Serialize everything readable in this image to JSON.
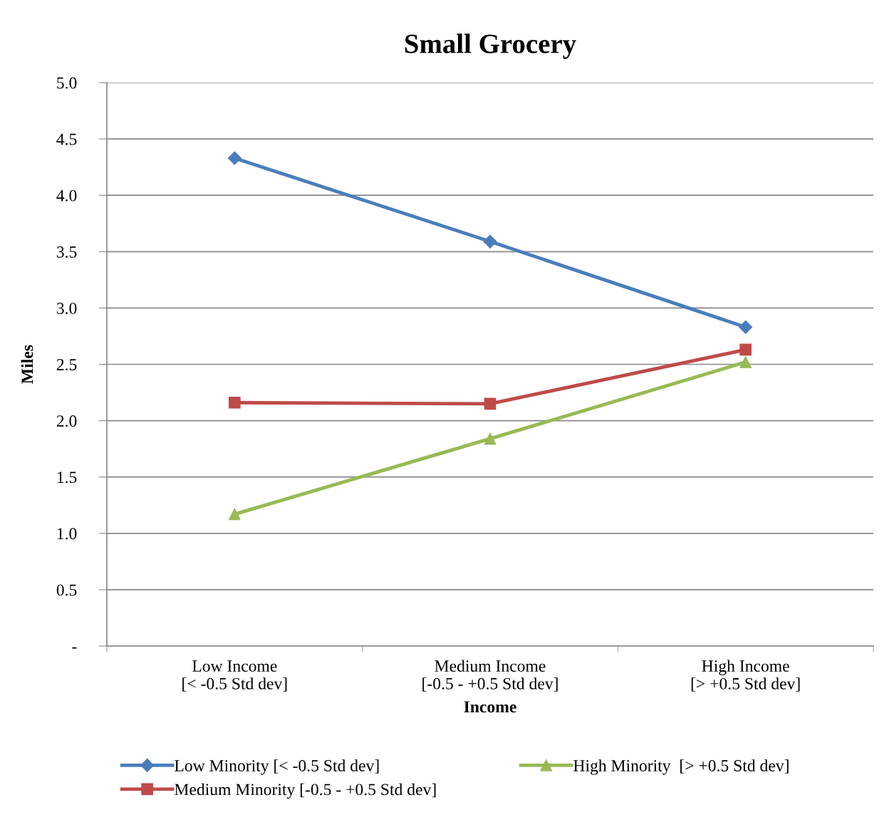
{
  "chart_data": {
    "type": "line",
    "title": "Small Grocery",
    "xlabel": "Income",
    "ylabel": "Miles",
    "categories": [
      "Low Income\n[< -0.5 Std dev]",
      "Medium Income\n[-0.5 - +0.5 Std dev]",
      "High Income\n[> +0.5 Std dev]"
    ],
    "series": [
      {
        "name": "Low Minority [< -0.5 Std dev]",
        "color": "#4a7ebb",
        "marker": "diamond",
        "values": [
          4.33,
          3.59,
          2.83
        ]
      },
      {
        "name": "Medium Minority [-0.5 - +0.5 Std dev]",
        "color": "#be4b48",
        "marker": "square",
        "values": [
          2.16,
          2.15,
          2.63
        ]
      },
      {
        "name": "High Minority  [> +0.5 Std dev]",
        "color": "#98b954",
        "marker": "triangle",
        "values": [
          1.17,
          1.84,
          2.52
        ]
      }
    ],
    "ylim": [
      0,
      5
    ],
    "yticks": [
      {
        "value": 0,
        "label": "-"
      },
      {
        "value": 0.5,
        "label": "0.5"
      },
      {
        "value": 1,
        "label": "1.0"
      },
      {
        "value": 1.5,
        "label": "1.5"
      },
      {
        "value": 2,
        "label": "2.0"
      },
      {
        "value": 2.5,
        "label": "2.5"
      },
      {
        "value": 3,
        "label": "3.0"
      },
      {
        "value": 3.5,
        "label": "3.5"
      },
      {
        "value": 4,
        "label": "4.0"
      },
      {
        "value": 4.5,
        "label": "4.5"
      },
      {
        "value": 5,
        "label": "5.0"
      }
    ],
    "grid": "y",
    "legend": "bottom",
    "line_style": "solid"
  }
}
